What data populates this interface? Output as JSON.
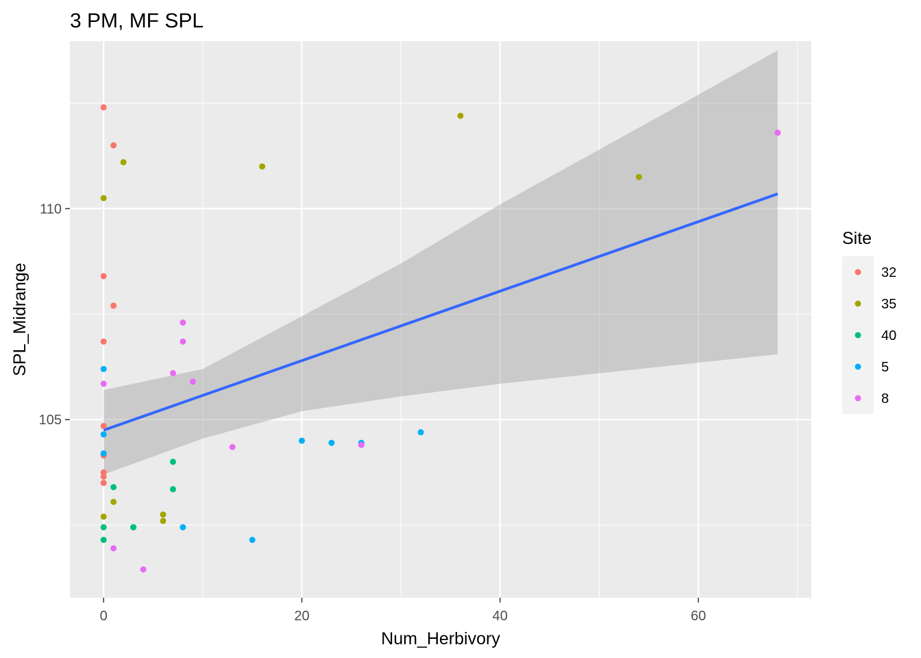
{
  "chart_data": {
    "type": "scatter",
    "title": "3 PM, MF SPL",
    "xlabel": "Num_Herbivory",
    "ylabel": "SPL_Midrange",
    "xlim": [
      -3.4,
      71.4
    ],
    "ylim": [
      100.78,
      113.97
    ],
    "xticks": [
      0,
      20,
      40,
      60
    ],
    "yticks": [
      105,
      110
    ],
    "grid": true,
    "legend": {
      "title": "Site",
      "position": "right"
    },
    "series": [
      {
        "name": "32",
        "color": "#F8766D",
        "points": [
          [
            0,
            112.4
          ],
          [
            1,
            111.5
          ],
          [
            0,
            108.4
          ],
          [
            1,
            107.7
          ],
          [
            0,
            106.85
          ],
          [
            0,
            104.85
          ],
          [
            0,
            104.15
          ],
          [
            0,
            103.75
          ],
          [
            0,
            103.65
          ],
          [
            0,
            103.5
          ]
        ]
      },
      {
        "name": "35",
        "color": "#A3A500",
        "points": [
          [
            0,
            110.25
          ],
          [
            2,
            111.1
          ],
          [
            16,
            111.0
          ],
          [
            36,
            112.2
          ],
          [
            54,
            110.75
          ],
          [
            1,
            103.05
          ],
          [
            0,
            102.7
          ],
          [
            6,
            102.75
          ],
          [
            6,
            102.6
          ]
        ]
      },
      {
        "name": "40",
        "color": "#00BF7D",
        "points": [
          [
            7,
            104.0
          ],
          [
            1,
            103.4
          ],
          [
            7,
            103.35
          ],
          [
            0,
            102.45
          ],
          [
            3,
            102.45
          ],
          [
            3,
            102.45
          ],
          [
            0,
            102.15
          ]
        ]
      },
      {
        "name": "5",
        "color": "#00B0F6",
        "points": [
          [
            0,
            106.2
          ],
          [
            0,
            104.65
          ],
          [
            0,
            104.2
          ],
          [
            20,
            104.5
          ],
          [
            23,
            104.45
          ],
          [
            26,
            104.45
          ],
          [
            32,
            104.7
          ],
          [
            8,
            102.45
          ],
          [
            15,
            102.15
          ]
        ]
      },
      {
        "name": "8",
        "color": "#E76BF3",
        "points": [
          [
            0,
            105.85
          ],
          [
            8,
            107.3
          ],
          [
            8,
            106.85
          ],
          [
            7,
            106.1
          ],
          [
            9,
            105.9
          ],
          [
            13,
            104.35
          ],
          [
            26,
            104.4
          ],
          [
            68,
            111.8
          ],
          [
            1,
            101.95
          ],
          [
            4,
            101.45
          ]
        ]
      }
    ],
    "fit": {
      "method": "lm",
      "color": "#3366FF",
      "band_color": "#999999",
      "line": [
        [
          0,
          104.75
        ],
        [
          68,
          110.35
        ]
      ],
      "band": [
        [
          0,
          105.7,
          103.7
        ],
        [
          10,
          106.2,
          104.55
        ],
        [
          20,
          107.45,
          105.2
        ],
        [
          30,
          108.7,
          105.55
        ],
        [
          40,
          110.1,
          105.85
        ],
        [
          50,
          111.4,
          106.1
        ],
        [
          60,
          112.7,
          106.35
        ],
        [
          68,
          113.75,
          106.55
        ]
      ]
    }
  }
}
